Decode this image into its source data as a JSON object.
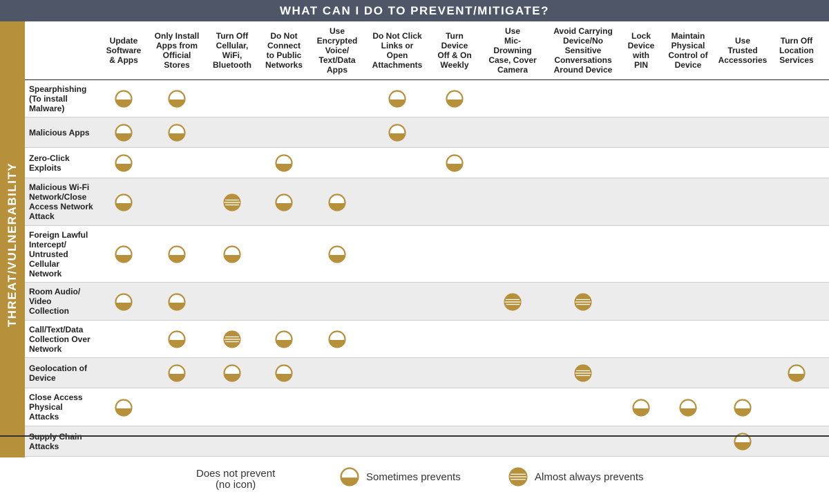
{
  "header": {
    "title": "WHAT CAN I DO TO PREVENT/MITIGATE?"
  },
  "side_label": "THREAT/VULNERABILITY",
  "columns": [
    "Update\nSoftware\n& Apps",
    "Only Install\nApps from\nOfficial\nStores",
    "Turn Off\nCellular,\nWiFi,\nBluetooth",
    "Do Not\nConnect\nto Public\nNetworks",
    "Use\nEncrypted\nVoice/\nText/Data\nApps",
    "Do Not Click\nLinks or Open\nAttachments",
    "Turn\nDevice\nOff & On\nWeekly",
    "Use\nMic-Drowning\nCase, Cover\nCamera",
    "Avoid Carrying\nDevice/No\nSensitive\nConversations\nAround Device",
    "Lock\nDevice\nwith\nPIN",
    "Maintain\nPhysical\nControl of\nDevice",
    "Use\nTrusted\nAccessories",
    "Turn Off\nLocation\nServices"
  ],
  "rows": [
    {
      "label": "Spearphishing\n(To install\nMalware)",
      "marks": [
        "S",
        "S",
        "",
        "",
        "",
        "S",
        "S",
        "",
        "",
        "",
        "",
        "",
        ""
      ]
    },
    {
      "label": "Malicious Apps",
      "marks": [
        "S",
        "S",
        "",
        "",
        "",
        "S",
        "",
        "",
        "",
        "",
        "",
        "",
        ""
      ]
    },
    {
      "label": "Zero-Click\nExploits",
      "marks": [
        "S",
        "",
        "",
        "S",
        "",
        "",
        "S",
        "",
        "",
        "",
        "",
        "",
        ""
      ]
    },
    {
      "label": "Malicious Wi-Fi\nNetwork/Close\nAccess Network\nAttack",
      "marks": [
        "S",
        "",
        "A",
        "S",
        "S",
        "",
        "",
        "",
        "",
        "",
        "",
        "",
        ""
      ]
    },
    {
      "label": "Foreign Lawful\nIntercept/\nUntrusted\nCellular\nNetwork",
      "marks": [
        "S",
        "S",
        "S",
        "",
        "S",
        "",
        "",
        "",
        "",
        "",
        "",
        "",
        ""
      ]
    },
    {
      "label": "Room Audio/\nVideo\nCollection",
      "marks": [
        "S",
        "S",
        "",
        "",
        "",
        "",
        "",
        "A",
        "A",
        "",
        "",
        "",
        ""
      ]
    },
    {
      "label": "Call/Text/Data\nCollection Over\nNetwork",
      "marks": [
        "",
        "S",
        "A",
        "S",
        "S",
        "",
        "",
        "",
        "",
        "",
        "",
        "",
        ""
      ]
    },
    {
      "label": "Geolocation of\nDevice",
      "marks": [
        "",
        "S",
        "S",
        "S",
        "",
        "",
        "",
        "",
        "A",
        "",
        "",
        "",
        "S"
      ]
    },
    {
      "label": "Close Access\nPhysical\nAttacks",
      "marks": [
        "S",
        "",
        "",
        "",
        "",
        "",
        "",
        "",
        "",
        "S",
        "S",
        "S",
        ""
      ]
    },
    {
      "label": "Supply Chain\nAttacks",
      "marks": [
        "",
        "",
        "",
        "",
        "",
        "",
        "",
        "",
        "",
        "",
        "",
        "S",
        ""
      ]
    }
  ],
  "legend": {
    "none": "Does not prevent\n(no icon)",
    "sometimes": "Sometimes prevents",
    "almost_always": "Almost always prevents"
  },
  "colors": {
    "header_bg": "#4e5668",
    "accent_gold": "#b7903c",
    "row_shade": "#ececec"
  }
}
